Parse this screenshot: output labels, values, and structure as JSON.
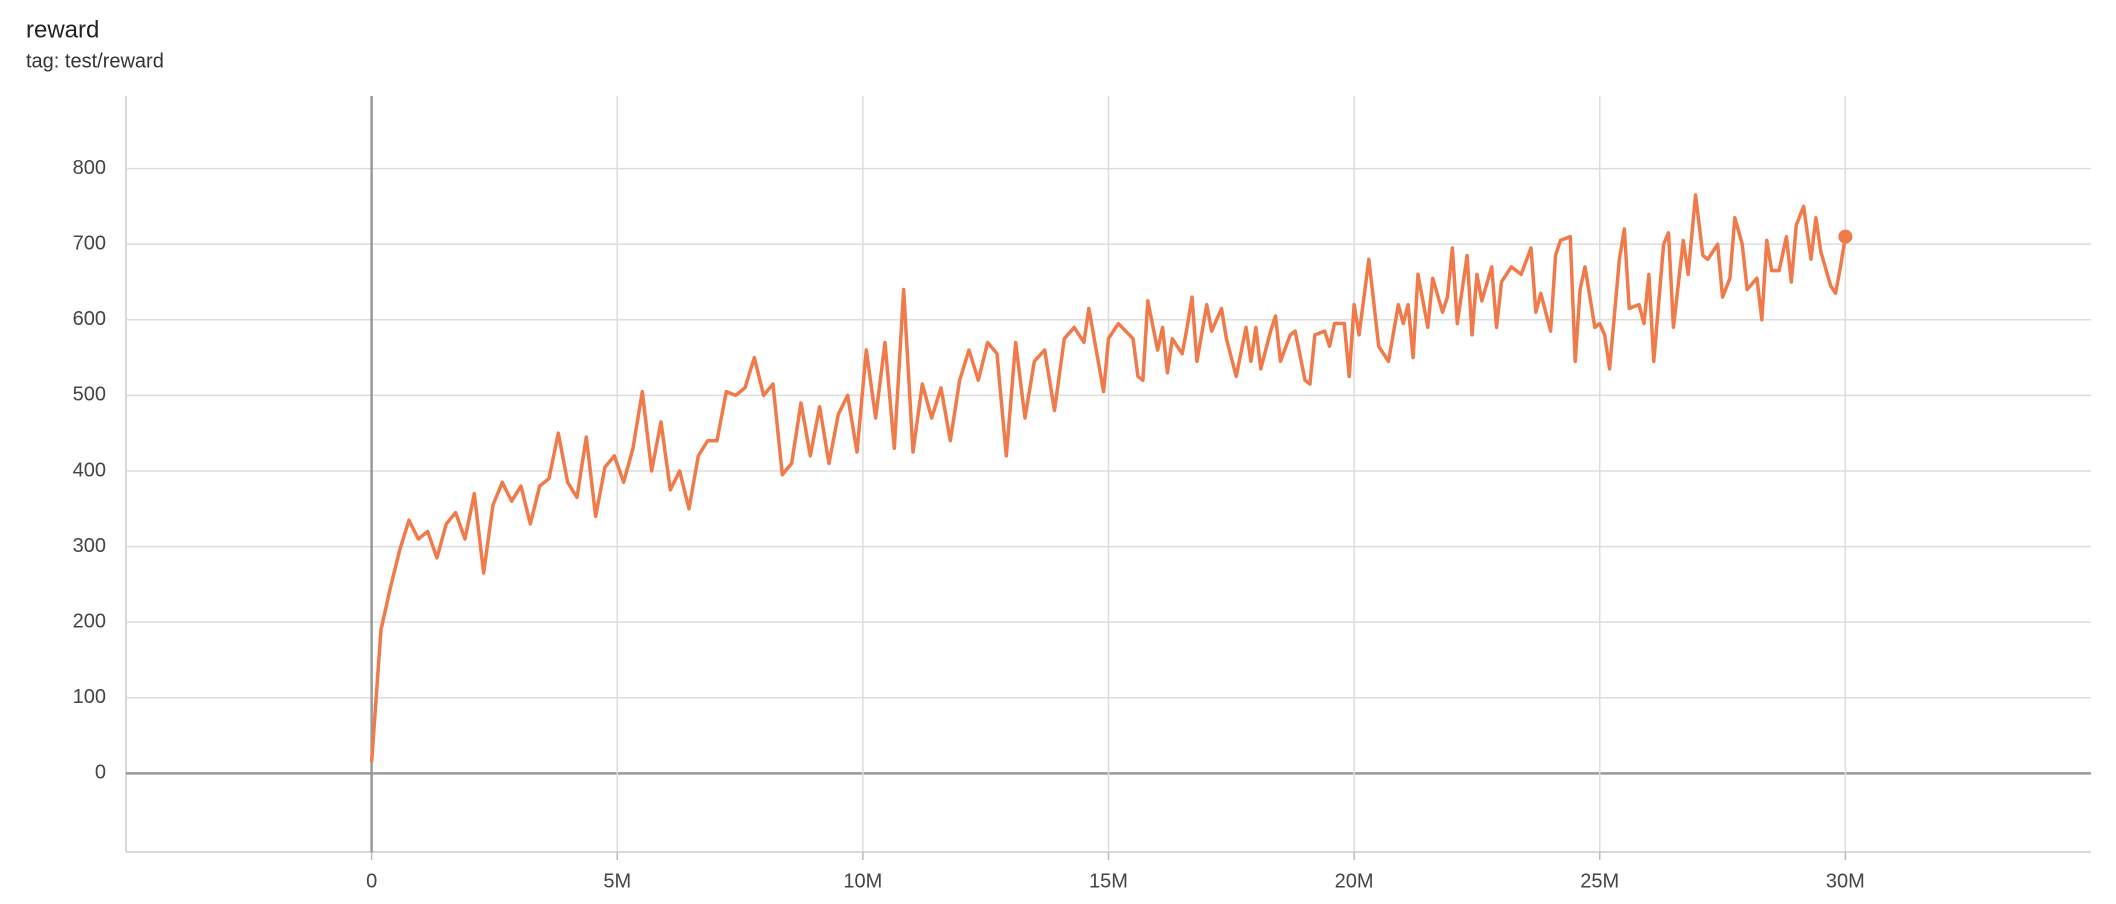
{
  "chart_data": {
    "type": "line",
    "title": "reward",
    "subtitle": "tag: test/reward",
    "x": [
      0,
      0.19,
      0.38,
      0.57,
      0.76,
      0.95,
      1.14,
      1.33,
      1.52,
      1.71,
      1.9,
      2.09,
      2.28,
      2.47,
      2.66,
      2.85,
      3.04,
      3.23,
      3.42,
      3.61,
      3.8,
      3.99,
      4.18,
      4.37,
      4.56,
      4.75,
      4.94,
      5.13,
      5.32,
      5.51,
      5.7,
      5.89,
      6.08,
      6.27,
      6.46,
      6.65,
      6.84,
      7.03,
      7.22,
      7.41,
      7.6,
      7.79,
      7.98,
      8.17,
      8.36,
      8.55,
      8.74,
      8.93,
      9.12,
      9.31,
      9.5,
      9.69,
      9.88,
      10.07,
      10.26,
      10.45,
      10.64,
      10.83,
      11.02,
      11.21,
      11.4,
      11.59,
      11.78,
      11.97,
      12.16,
      12.35,
      12.54,
      12.73,
      12.92,
      13.11,
      13.3,
      13.49,
      13.7,
      13.9,
      14.1,
      14.3,
      14.5,
      14.6,
      14.9,
      15.0,
      15.2,
      15.5,
      15.6,
      15.7,
      15.8,
      16.0,
      16.1,
      16.2,
      16.3,
      16.5,
      16.6,
      16.7,
      16.8,
      17.0,
      17.1,
      17.3,
      17.4,
      17.6,
      17.8,
      17.9,
      18.0,
      18.1,
      18.3,
      18.4,
      18.5,
      18.7,
      18.8,
      19.0,
      19.1,
      19.2,
      19.4,
      19.5,
      19.6,
      19.8,
      19.9,
      20.0,
      20.1,
      20.3,
      20.5,
      20.7,
      20.9,
      21.0,
      21.1,
      21.2,
      21.3,
      21.5,
      21.6,
      21.8,
      21.9,
      22.0,
      22.1,
      22.3,
      22.4,
      22.5,
      22.6,
      22.8,
      22.9,
      23.0,
      23.2,
      23.4,
      23.6,
      23.7,
      23.8,
      24.0,
      24.1,
      24.2,
      24.4,
      24.5,
      24.6,
      24.7,
      24.9,
      25.0,
      25.1,
      25.2,
      25.4,
      25.5,
      25.6,
      25.8,
      25.9,
      26.0,
      26.1,
      26.3,
      26.4,
      26.5,
      26.7,
      26.8,
      26.95,
      27.1,
      27.2,
      27.4,
      27.5,
      27.65,
      27.75,
      27.9,
      28.0,
      28.2,
      28.3,
      28.4,
      28.5,
      28.65,
      28.8,
      28.9,
      29.0,
      29.15,
      29.3,
      29.4,
      29.5,
      29.7,
      29.8,
      29.9,
      30.0
    ],
    "values": [
      15,
      190,
      245,
      295,
      335,
      310,
      320,
      285,
      330,
      345,
      310,
      370,
      265,
      355,
      385,
      360,
      380,
      330,
      380,
      390,
      450,
      385,
      365,
      445,
      340,
      405,
      420,
      385,
      430,
      505,
      400,
      465,
      375,
      400,
      350,
      420,
      440,
      440,
      505,
      500,
      510,
      550,
      500,
      515,
      395,
      410,
      490,
      420,
      485,
      410,
      475,
      500,
      425,
      560,
      470,
      570,
      430,
      640,
      425,
      515,
      470,
      510,
      440,
      520,
      560,
      520,
      570,
      555,
      420,
      570,
      470,
      545,
      560,
      480,
      575,
      590,
      570,
      615,
      505,
      575,
      595,
      575,
      525,
      520,
      625,
      560,
      590,
      530,
      575,
      555,
      590,
      630,
      545,
      620,
      585,
      615,
      575,
      525,
      590,
      545,
      590,
      535,
      585,
      605,
      545,
      580,
      585,
      520,
      515,
      580,
      585,
      565,
      595,
      595,
      525,
      620,
      580,
      680,
      565,
      545,
      620,
      595,
      620,
      550,
      660,
      590,
      655,
      610,
      630,
      695,
      595,
      685,
      580,
      660,
      625,
      670,
      590,
      650,
      670,
      660,
      695,
      610,
      635,
      585,
      685,
      705,
      710,
      545,
      640,
      670,
      590,
      595,
      580,
      535,
      680,
      720,
      615,
      620,
      595,
      660,
      545,
      700,
      715,
      590,
      705,
      660,
      765,
      685,
      680,
      700,
      630,
      655,
      735,
      700,
      640,
      655,
      600,
      705,
      665,
      665,
      710,
      650,
      725,
      750,
      680,
      735,
      690,
      645,
      635,
      670,
      710
    ],
    "color": "#f07a4a",
    "xlim": [
      -5,
      35
    ],
    "xticks": [
      0,
      {
        "value": 5,
        "label": "5M"
      },
      {
        "value": 10,
        "label": "10M"
      },
      {
        "value": 15,
        "label": "15M"
      },
      {
        "value": 20,
        "label": "20M"
      },
      {
        "value": 25,
        "label": "25M"
      },
      {
        "value": 30,
        "label": "30M"
      }
    ],
    "ylim": [
      -104,
      896
    ],
    "yticks": [
      0,
      100,
      200,
      300,
      400,
      500,
      600,
      700,
      800
    ],
    "grid": true
  }
}
